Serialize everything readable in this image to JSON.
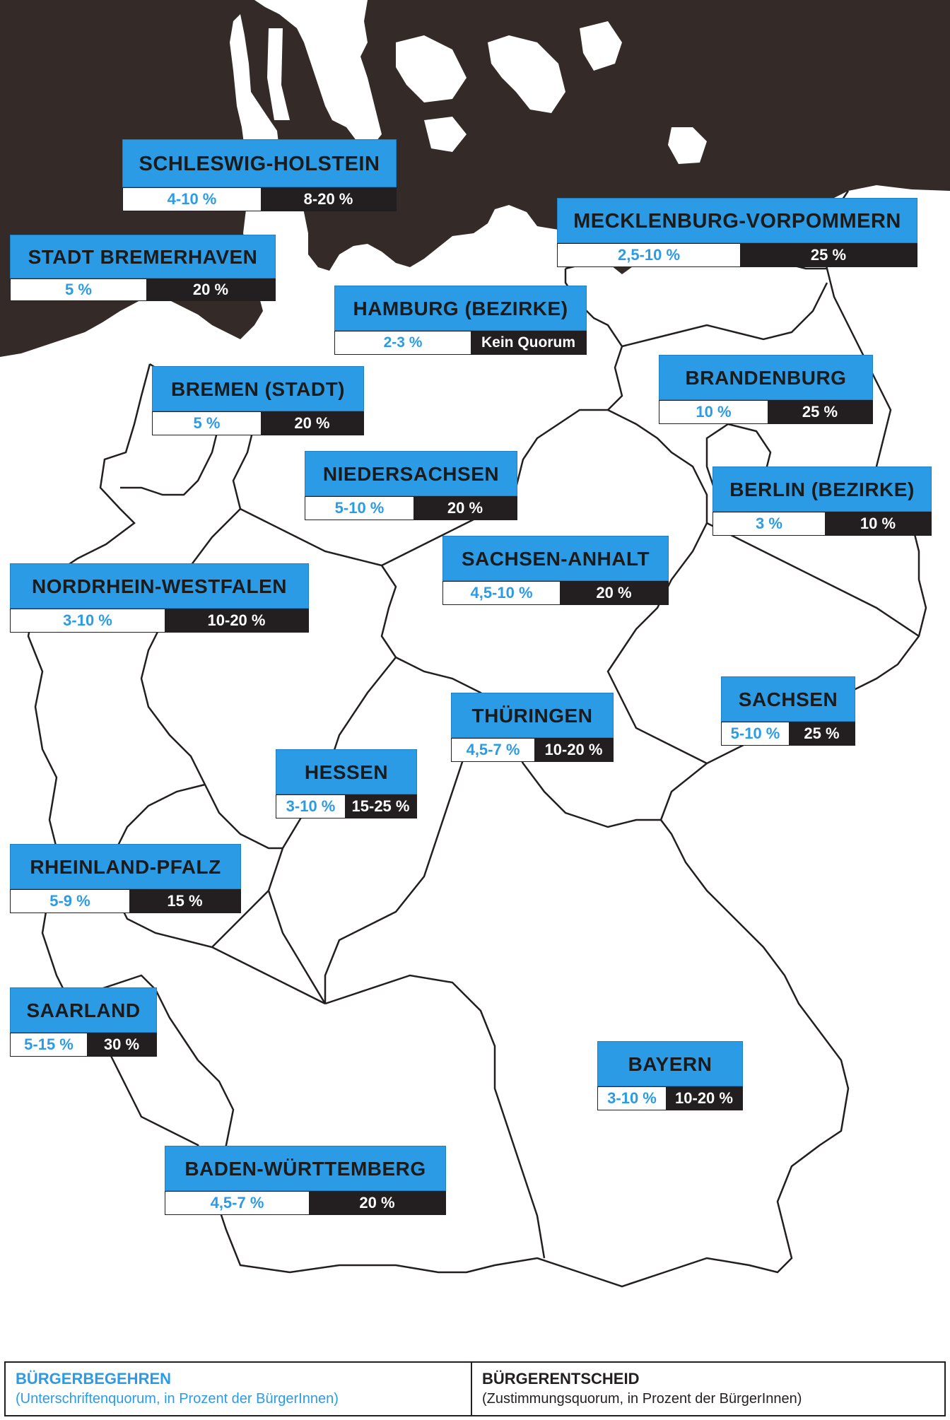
{
  "colors": {
    "accent": "#2c9be6",
    "dark": "#231f20",
    "sea": "#342b29",
    "border": "#231f20"
  },
  "states": [
    {
      "name": "SCHLESWIG-HOLSTEIN",
      "begehren": "4-10 %",
      "entscheid": "8-20 %"
    },
    {
      "name": "STADT BREMERHAVEN",
      "begehren": "5 %",
      "entscheid": "20 %"
    },
    {
      "name": "MECKLENBURG-VORPOMMERN",
      "begehren": "2,5-10 %",
      "entscheid": "25 %"
    },
    {
      "name": "HAMBURG (BEZIRKE)",
      "begehren": "2-3 %",
      "entscheid": "Kein Quorum"
    },
    {
      "name": "BREMEN (STADT)",
      "begehren": "5 %",
      "entscheid": "20 %"
    },
    {
      "name": "BRANDENBURG",
      "begehren": "10 %",
      "entscheid": "25 %"
    },
    {
      "name": "NIEDERSACHSEN",
      "begehren": "5-10 %",
      "entscheid": "20 %"
    },
    {
      "name": "BERLIN (BEZIRKE)",
      "begehren": "3 %",
      "entscheid": "10 %"
    },
    {
      "name": "SACHSEN-ANHALT",
      "begehren": "4,5-10 %",
      "entscheid": "20 %"
    },
    {
      "name": "NORDRHEIN-WESTFALEN",
      "begehren": "3-10 %",
      "entscheid": "10-20 %"
    },
    {
      "name": "THÜRINGEN",
      "begehren": "4,5-7 %",
      "entscheid": "10-20 %"
    },
    {
      "name": "SACHSEN",
      "begehren": "5-10 %",
      "entscheid": "25 %"
    },
    {
      "name": "HESSEN",
      "begehren": "3-10 %",
      "entscheid": "15-25 %"
    },
    {
      "name": "RHEINLAND-PFALZ",
      "begehren": "5-9 %",
      "entscheid": "15 %"
    },
    {
      "name": "SAARLAND",
      "begehren": "5-15 %",
      "entscheid": "30 %"
    },
    {
      "name": "BAYERN",
      "begehren": "3-10 %",
      "entscheid": "10-20 %"
    },
    {
      "name": "BADEN-WÜRTTEMBERG",
      "begehren": "4,5-7 %",
      "entscheid": "20 %"
    }
  ],
  "legend": {
    "left_title": "BÜRGERBEGEHREN",
    "left_sub": "(Unterschriftenquorum, in Prozent der BürgerInnen)",
    "right_title": "BÜRGERENTSCHEID",
    "right_sub": "(Zustimmungsquorum, in Prozent der BürgerInnen)"
  }
}
